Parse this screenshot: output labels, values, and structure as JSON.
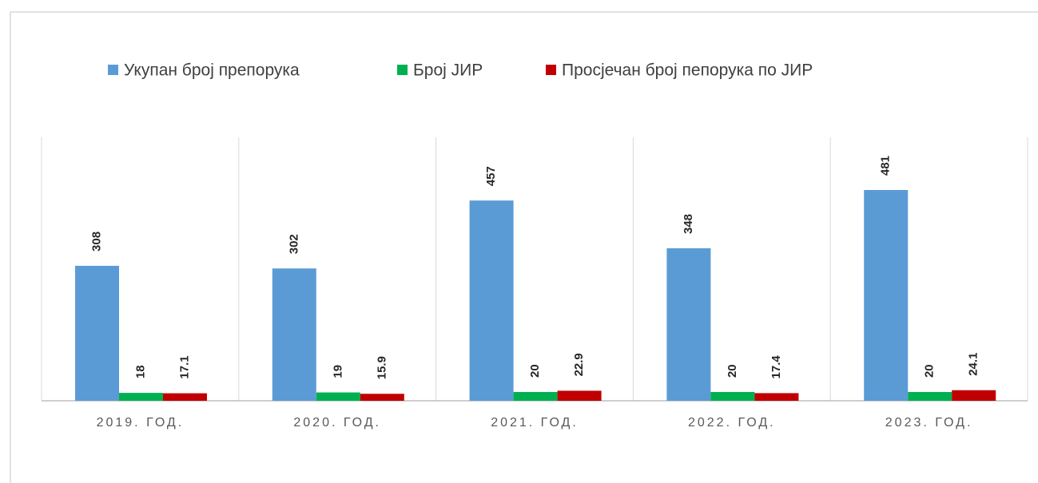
{
  "chart_data": {
    "type": "bar",
    "categories": [
      "2019. ГОД.",
      "2020. ГОД.",
      "2021. ГОД.",
      "2022. ГОД.",
      "2023. ГОД."
    ],
    "series": [
      {
        "name": "Укупан број препорука",
        "color": "#5b9bd5",
        "values": [
          308,
          302,
          457,
          348,
          481
        ]
      },
      {
        "name": "Број ЈИР",
        "color": "#00b050",
        "values": [
          18,
          19,
          20,
          20,
          20
        ]
      },
      {
        "name": "Просјечан број пепорука по ЈИР",
        "color": "#c00000",
        "values": [
          17.1,
          15.9,
          22.9,
          17.4,
          24.1
        ]
      }
    ],
    "legend": "top"
  }
}
